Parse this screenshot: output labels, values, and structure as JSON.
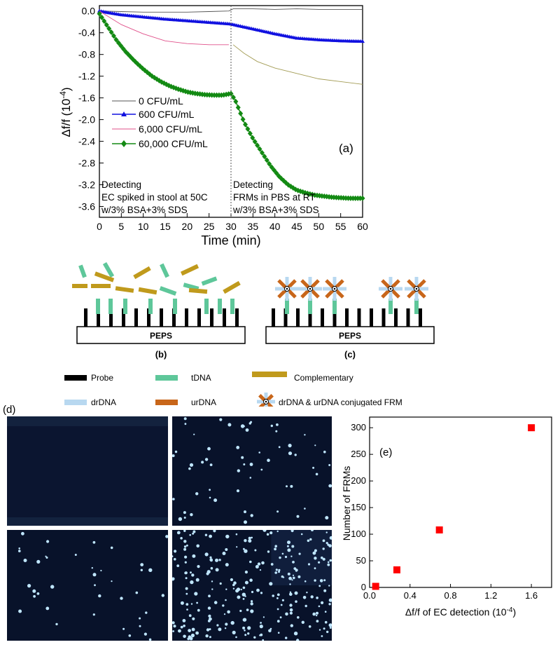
{
  "panel_a": {
    "panel_label": "(a)",
    "xlabel": "Time (min)",
    "ylabel_main": "Δf/f (10",
    "ylabel_exp": "-4",
    "ylabel_close": ")",
    "legend": [
      {
        "label": "0 CFU/mL",
        "color": "#555555",
        "marker": "none"
      },
      {
        "label": "600 CFU/mL",
        "color": "#1010e0",
        "marker": "triangle"
      },
      {
        "label": "6,000 CFU/mL",
        "color": "#e0508a",
        "marker": "none"
      },
      {
        "label": "60,000 CFU/mL",
        "color": "#138a13",
        "marker": "diamond"
      }
    ],
    "annotation_left": [
      "Detecting",
      "EC spiked in stool at 50C",
      "w/3% BSA+3% SDS"
    ],
    "annotation_right": [
      "Detecting",
      "FRMs in PBS at RT",
      "w/3% BSA+3% SDS"
    ]
  },
  "chart_data": [
    {
      "type": "line",
      "x_unit": "min",
      "xlabel": "Time (min)",
      "ylabel": "Δf/f (10^-4)",
      "xlim": [
        0,
        60
      ],
      "ylim": [
        -3.8,
        0.1
      ],
      "x_ticks": [
        0,
        5,
        10,
        15,
        20,
        25,
        30,
        35,
        40,
        45,
        50,
        55,
        60
      ],
      "y_ticks": [
        0.0,
        -0.4,
        -0.8,
        -1.2,
        -1.6,
        -2.0,
        -2.4,
        -2.8,
        -3.2,
        -3.6
      ],
      "legend_position": "left-middle",
      "divider_x": 30,
      "series": [
        {
          "name": "0 CFU/mL",
          "x": [
            0,
            5,
            10,
            15,
            20,
            25,
            29.5,
            30.5,
            35,
            40,
            45,
            50,
            55,
            60
          ],
          "y": [
            0.0,
            -0.01,
            -0.02,
            -0.02,
            -0.02,
            -0.01,
            0.0,
            0.04,
            0.04,
            0.03,
            0.04,
            0.03,
            0.03,
            0.03
          ]
        },
        {
          "name": "600 CFU/mL",
          "x": [
            0,
            2,
            5,
            10,
            15,
            20,
            25,
            30,
            31,
            35,
            40,
            45,
            50,
            55,
            60
          ],
          "y": [
            0.0,
            -0.03,
            -0.07,
            -0.11,
            -0.15,
            -0.18,
            -0.21,
            -0.24,
            -0.26,
            -0.33,
            -0.42,
            -0.5,
            -0.53,
            -0.55,
            -0.56
          ]
        },
        {
          "name": "6,000 CFU/mL",
          "x": [
            0,
            2,
            5,
            10,
            15,
            20,
            25,
            29.5
          ],
          "y": [
            0.0,
            -0.1,
            -0.25,
            -0.42,
            -0.55,
            -0.6,
            -0.62,
            -0.62
          ]
        },
        {
          "name": "6,000 CFU/mL (segment 2)",
          "x": [
            30.5,
            33,
            36,
            40,
            45,
            50,
            55,
            60
          ],
          "y": [
            -0.62,
            -0.78,
            -0.93,
            -1.05,
            -1.15,
            -1.25,
            -1.3,
            -1.35
          ]
        },
        {
          "name": "60,000 CFU/mL",
          "x": [
            0,
            2,
            4,
            6,
            8,
            10,
            12,
            14,
            16,
            18,
            20,
            22,
            24,
            26,
            28,
            30,
            31,
            33,
            35,
            37,
            39,
            41,
            43,
            45,
            47,
            49,
            51,
            53,
            55,
            57,
            60
          ],
          "y": [
            -0.05,
            -0.3,
            -0.55,
            -0.75,
            -0.92,
            -1.07,
            -1.2,
            -1.3,
            -1.38,
            -1.44,
            -1.49,
            -1.52,
            -1.54,
            -1.55,
            -1.55,
            -1.52,
            -1.65,
            -2.05,
            -2.35,
            -2.6,
            -2.85,
            -3.05,
            -3.2,
            -3.3,
            -3.35,
            -3.39,
            -3.41,
            -3.43,
            -3.44,
            -3.45,
            -3.45
          ]
        }
      ]
    },
    {
      "type": "scatter",
      "panel_label": "(e)",
      "xlabel": "Δf/f of EC detection (10^-4)",
      "ylabel": "Number of FRMs",
      "xlim": [
        0,
        1.8
      ],
      "ylim": [
        0,
        320
      ],
      "x_ticks": [
        0.0,
        0.4,
        0.8,
        1.2,
        1.6
      ],
      "y_ticks": [
        0,
        50,
        100,
        150,
        200,
        250,
        300
      ],
      "series": [
        {
          "x": [
            0.06,
            0.27,
            0.69,
            1.6
          ],
          "y": [
            2,
            33,
            108,
            300
          ],
          "color": "#ff0000",
          "marker": "square"
        }
      ]
    }
  ],
  "panel_e": {
    "panel_label": "(e)",
    "xlabel_main": "Δf/f of EC detection (10",
    "xlabel_exp": "-4",
    "xlabel_close": ")",
    "ylabel": "Number of FRMs"
  },
  "schematic": {
    "surface_label_b": "PEPS",
    "surface_label_c": "PEPS",
    "panel_label_b": "(b)",
    "panel_label_c": "(c)",
    "legend": {
      "probe": "Probe",
      "tdna": "tDNA",
      "complementary": "Complementary",
      "drdna": "drDNA",
      "urdna": "urDNA",
      "frm": "drDNA & urDNA  conjugated FRM"
    },
    "colors": {
      "probe": "#000000",
      "tdna": "#5ec79a",
      "complementary": "#c09a1c",
      "drdna": "#b8d8f0",
      "urdna": "#c8661a"
    }
  },
  "panel_d": {
    "panel_label": "(d)",
    "bg_color": "#08122a",
    "dot_color": "#bfe6ff"
  }
}
